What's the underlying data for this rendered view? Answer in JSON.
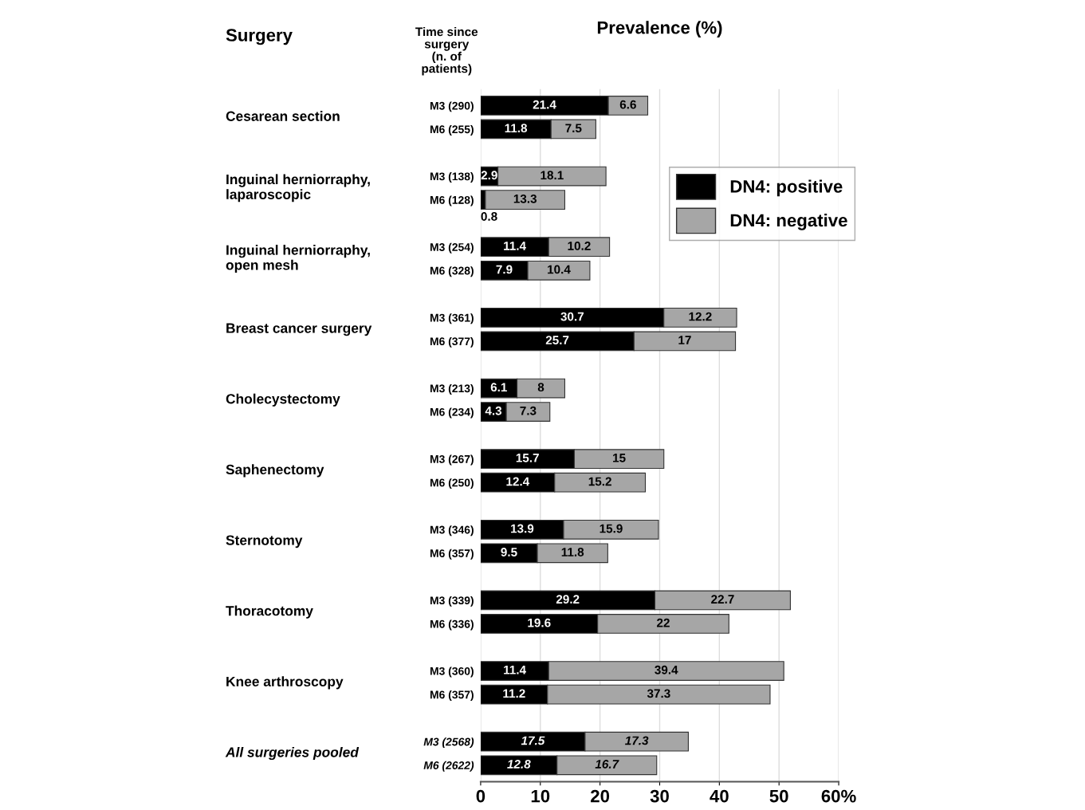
{
  "chart_data": {
    "type": "bar",
    "orientation": "horizontal",
    "stacked": true,
    "title": "Prevalence (%)",
    "ylabel": "Time since\nsurgery\n(n. of\npatients)",
    "categories": [
      "M3 (290)",
      "M6 (255)",
      "M3 (138)",
      "M6 (128)",
      "M3 (254)",
      "M6 (328)",
      "M3 (361)",
      "M6 (377)",
      "M3 (213)",
      "M6 (234)",
      "M3 (267)",
      "M6 (250)",
      "M3 (346)",
      "M6 (357)",
      "M3 (339)",
      "M6 (336)",
      "M3 (360)",
      "M6 (357)",
      "M3 (2568)",
      "M6 (2622)"
    ],
    "series": [
      {
        "name": "DN4: positive",
        "color": "#000000",
        "values": [
          21.4,
          11.8,
          2.9,
          0.8,
          11.4,
          7.9,
          30.7,
          25.7,
          6.1,
          4.3,
          15.7,
          12.4,
          13.9,
          9.5,
          29.2,
          19.6,
          11.4,
          11.2,
          17.5,
          12.8
        ]
      },
      {
        "name": "DN4: negative",
        "color": "#a6a6a6",
        "values": [
          6.6,
          7.5,
          18.1,
          13.3,
          10.2,
          10.4,
          12.2,
          17,
          8,
          7.3,
          15,
          15.2,
          15.9,
          11.8,
          22.7,
          22,
          39.4,
          37.3,
          17.3,
          16.7
        ]
      }
    ],
    "data_labels": true,
    "xlim": [
      0,
      60
    ],
    "xticks": [
      0,
      10,
      20,
      30,
      40,
      50,
      {
        "value": 60,
        "label": "60%"
      }
    ],
    "grid": "x",
    "legend": "top right",
    "annotations": [
      "Surgery",
      "Cesarean section",
      "Inguinal herniorraphy,\nlaparoscopic",
      "Inguinal herniorraphy,\nopen mesh",
      "Breast cancer surgery",
      "Cholecystectomy",
      "Saphenectomy",
      "Sternotomy",
      "Thoracotomy",
      "Knee arthroscopy",
      "All surgeries pooled"
    ]
  }
}
